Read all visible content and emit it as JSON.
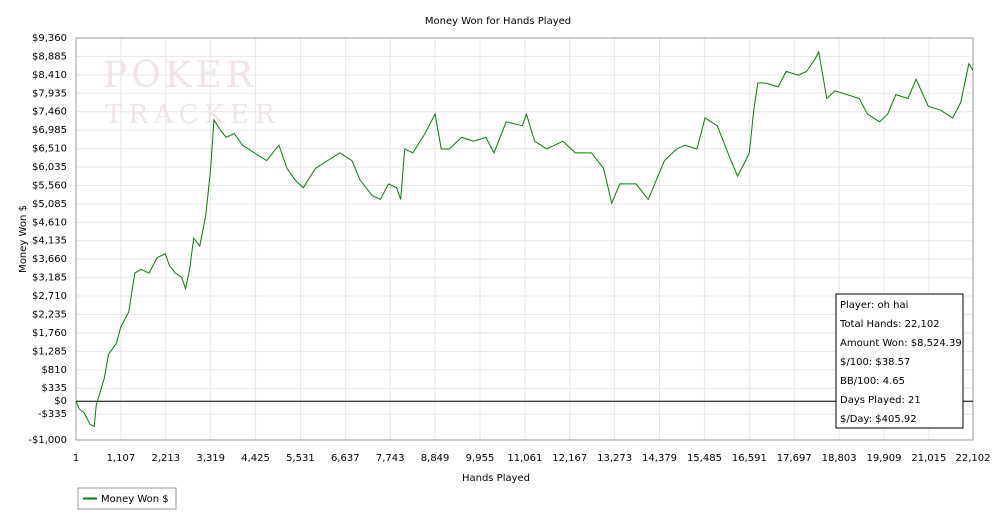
{
  "chart_data": {
    "type": "line",
    "title": "Money Won for Hands Played",
    "x_label": "Hands Played",
    "y_label": "Money Won $",
    "watermark": [
      "POKER",
      "TRACKER"
    ],
    "xlim": [
      1,
      22102
    ],
    "xticks": [
      1,
      {
        "value": 1107,
        "label": "1,107"
      },
      {
        "value": 2213,
        "label": "2,213"
      },
      {
        "value": 3319,
        "label": "3,319"
      },
      {
        "value": 4425,
        "label": "4,425"
      },
      {
        "value": 5531,
        "label": "5,531"
      },
      {
        "value": 6637,
        "label": "6,637"
      },
      {
        "value": 7743,
        "label": "7,743"
      },
      {
        "value": 8849,
        "label": "8,849"
      },
      {
        "value": 9955,
        "label": "9,955"
      },
      {
        "value": 11061,
        "label": "11,061"
      },
      {
        "value": 12167,
        "label": "12,167"
      },
      {
        "value": 13273,
        "label": "13,273"
      },
      {
        "value": 14379,
        "label": "14,379"
      },
      {
        "value": 15485,
        "label": "15,485"
      },
      {
        "value": 16591,
        "label": "16,591"
      },
      {
        "value": 17697,
        "label": "17,697"
      },
      {
        "value": 18803,
        "label": "18,803"
      },
      {
        "value": 19909,
        "label": "19,909"
      },
      {
        "value": 21015,
        "label": "21,015"
      },
      {
        "value": 22102,
        "label": "22,102"
      }
    ],
    "ylim": [
      -1000,
      9360
    ],
    "yticks": [
      {
        "value": -1000,
        "label": "-$1,000"
      },
      {
        "value": -335,
        "label": "-$335"
      },
      {
        "value": 0,
        "label": "$0"
      },
      {
        "value": 335,
        "label": "$335"
      },
      {
        "value": 810,
        "label": "$810"
      },
      {
        "value": 1285,
        "label": "$1,285"
      },
      {
        "value": 1760,
        "label": "$1,760"
      },
      {
        "value": 2235,
        "label": "$2,235"
      },
      {
        "value": 2710,
        "label": "$2,710"
      },
      {
        "value": 3185,
        "label": "$3,185"
      },
      {
        "value": 3660,
        "label": "$3,660"
      },
      {
        "value": 4135,
        "label": "$4,135"
      },
      {
        "value": 4610,
        "label": "$4,610"
      },
      {
        "value": 5085,
        "label": "$5,085"
      },
      {
        "value": 5560,
        "label": "$5,560"
      },
      {
        "value": 6035,
        "label": "$6,035"
      },
      {
        "value": 6510,
        "label": "$6,510"
      },
      {
        "value": 6985,
        "label": "$6,985"
      },
      {
        "value": 7460,
        "label": "$7,460"
      },
      {
        "value": 7935,
        "label": "$7,935"
      },
      {
        "value": 8410,
        "label": "$8,410"
      },
      {
        "value": 8885,
        "label": "$8,885"
      },
      {
        "value": 9360,
        "label": "$9,360"
      }
    ],
    "grid": true,
    "legend": "bottom-left",
    "annotations": [
      "Player: oh hai",
      "Total Hands: 22,102",
      "Amount Won: $8,524.39",
      "$/100: $38.57",
      "BB/100: 4.65",
      "Days Played: 21",
      "$/Day: $405.92"
    ],
    "x": [
      1,
      80,
      200,
      350,
      450,
      500,
      700,
      800,
      1000,
      1100,
      1300,
      1450,
      1600,
      1800,
      2000,
      2200,
      2300,
      2450,
      2600,
      2700,
      2800,
      2900,
      3050,
      3200,
      3319,
      3400,
      3550,
      3700,
      3900,
      4100,
      4400,
      4700,
      5000,
      5200,
      5400,
      5600,
      5900,
      6200,
      6500,
      6800,
      7000,
      7300,
      7500,
      7700,
      7900,
      8000,
      8100,
      8300,
      8600,
      8849,
      9000,
      9200,
      9500,
      9800,
      10100,
      10300,
      10600,
      11000,
      11100,
      11300,
      11600,
      12000,
      12300,
      12700,
      13000,
      13200,
      13400,
      13800,
      14100,
      14300,
      14500,
      14800,
      15000,
      15300,
      15500,
      15800,
      16100,
      16300,
      16500,
      16591,
      16700,
      16800,
      17000,
      17300,
      17500,
      17800,
      18000,
      18200,
      18300,
      18500,
      18700,
      19000,
      19300,
      19500,
      19800,
      20000,
      20200,
      20500,
      20700,
      21000,
      21300,
      21600,
      21800,
      22000,
      22102
    ],
    "series": [
      {
        "name": "Money Won $",
        "color": "#008000",
        "values": [
          0,
          -200,
          -300,
          -600,
          -650,
          -100,
          600,
          1200,
          1500,
          1900,
          2300,
          3300,
          3400,
          3300,
          3700,
          3800,
          3500,
          3300,
          3200,
          2900,
          3400,
          4200,
          4000,
          4800,
          6000,
          7250,
          7000,
          6800,
          6900,
          6600,
          6400,
          6200,
          6600,
          6000,
          5700,
          5500,
          6000,
          6200,
          6400,
          6200,
          5700,
          5300,
          5200,
          5600,
          5500,
          5200,
          6500,
          6400,
          6900,
          7400,
          6500,
          6500,
          6800,
          6700,
          6800,
          6400,
          7200,
          7100,
          7400,
          6700,
          6500,
          6700,
          6400,
          6400,
          6000,
          5100,
          5600,
          5600,
          5200,
          5700,
          6200,
          6500,
          6600,
          6500,
          7300,
          7100,
          6300,
          5800,
          6200,
          6400,
          7500,
          8200,
          8200,
          8100,
          8500,
          8400,
          8500,
          8800,
          9000,
          7800,
          8000,
          7900,
          7800,
          7400,
          7200,
          7400,
          7900,
          7800,
          8300,
          7600,
          7500,
          7300,
          7700,
          8700,
          8524
        ]
      }
    ]
  }
}
